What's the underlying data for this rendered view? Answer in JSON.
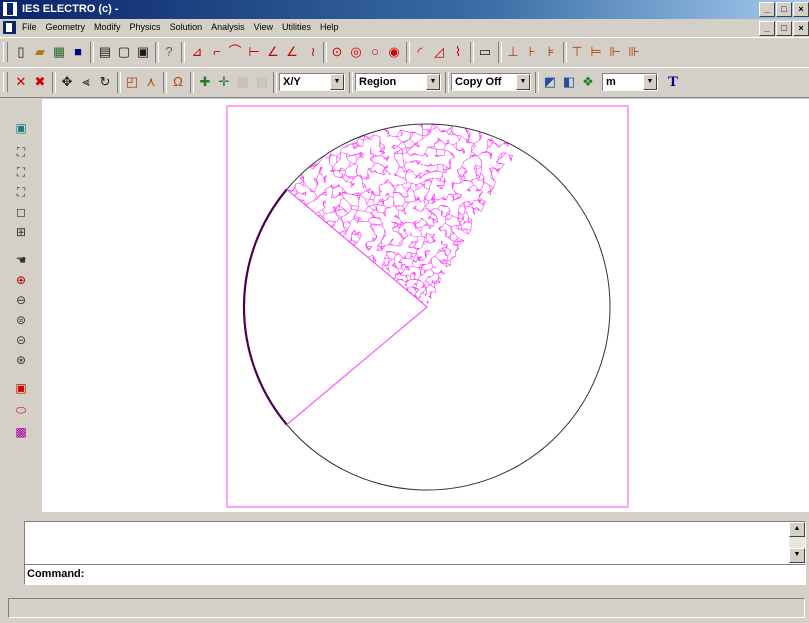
{
  "window": {
    "title": "IES ELECTRO (c) -"
  },
  "window_buttons": [
    "_",
    "□",
    "×"
  ],
  "menu": [
    {
      "label": "File"
    },
    {
      "label": "Geometry"
    },
    {
      "label": "Modify"
    },
    {
      "label": "Physics"
    },
    {
      "label": "Solution"
    },
    {
      "label": "Analysis"
    },
    {
      "label": "View"
    },
    {
      "label": "Utilities"
    },
    {
      "label": "Help"
    }
  ],
  "toolbar2": {
    "view_plane": "X/Y",
    "selection_mode": "Region",
    "copy_mode": "Copy Off",
    "units": "m",
    "text_tool": "T"
  },
  "command": {
    "label": "Command:",
    "value": ""
  },
  "colors": {
    "mesh": "#ff33ff",
    "boundary": "#4b0050",
    "frame": "#ff66ff"
  }
}
